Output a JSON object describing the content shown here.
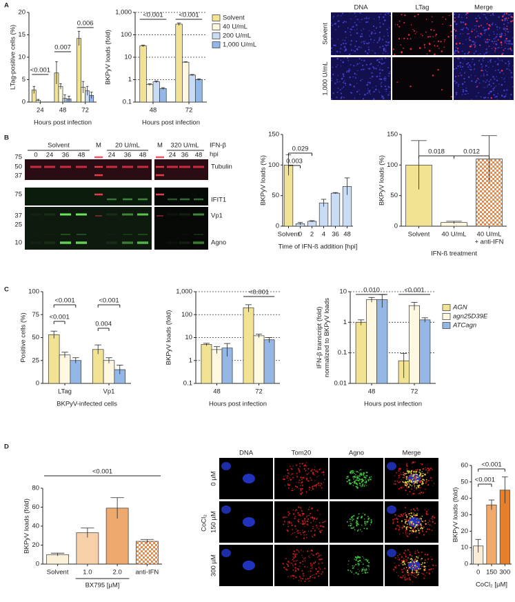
{
  "panel_labels": [
    "A",
    "B",
    "C",
    "D"
  ],
  "micrographs_A": {
    "columns": [
      "DNA",
      "LTag",
      "Merge"
    ],
    "rows": [
      "Solvent",
      "1,000 U/mL"
    ]
  },
  "blot": {
    "groups": [
      "Solvent",
      "M",
      "20 U/mL",
      "M",
      "320 U/mL"
    ],
    "treatment": "IFN-β",
    "time_label": "hpi",
    "lanes": [
      "0",
      "24",
      "36",
      "48",
      "24",
      "36",
      "48",
      "24",
      "36",
      "48"
    ],
    "markers": [
      "75",
      "50",
      "37",
      "75",
      "37",
      "25",
      "10"
    ],
    "proteins": [
      "Tubulin",
      "IFIT1",
      "Vp1",
      "Agno"
    ]
  },
  "micrographs_D": {
    "columns": [
      "DNA",
      "Tom20",
      "Agno",
      "Merge"
    ],
    "rows": [
      "0 µM",
      "150 µM",
      "300 µM"
    ],
    "row_axis": "CoCl₂"
  },
  "chart_data": [
    {
      "type": "bar",
      "ylabel": "LTag-positive cells (%)",
      "xlabel": "Hours post infection",
      "categories": [
        "24",
        "48",
        "72"
      ],
      "series": [
        {
          "color": "#f2e394",
          "values": [
            2.7,
            6.5,
            14.2
          ],
          "errors": [
            0.8,
            2.5,
            1.6
          ]
        },
        {
          "color": "#fdf8df",
          "values": [
            0.4,
            3.5,
            3.3
          ],
          "errors": [
            0.2,
            0.6,
            1.3
          ]
        },
        {
          "color": "#c9dcf3",
          "values": [
            0,
            0.8,
            2.5
          ],
          "errors": [
            0,
            0.8,
            1.0
          ]
        },
        {
          "color": "#94b7e6",
          "values": [
            0,
            0.7,
            1.5
          ],
          "errors": [
            0,
            0.6,
            0.7
          ]
        }
      ],
      "ylim": [
        0,
        20
      ],
      "yticks": [
        0,
        5,
        10,
        15,
        20
      ],
      "log": false,
      "grid": false,
      "annotations": [
        "<0.001",
        "0.007",
        "0.006"
      ]
    },
    {
      "type": "bar",
      "ylabel": "BKPyV loads (fold)",
      "xlabel": "Hours post infection",
      "categories": [
        "48",
        "72"
      ],
      "series": [
        {
          "name": "Solvent",
          "color": "#f2e394",
          "values": [
            32,
            300
          ],
          "errors": [
            3,
            40
          ]
        },
        {
          "name": "40 U/mL",
          "color": "#fdf8df",
          "values": [
            0.6,
            6
          ],
          "errors": [
            0.05,
            0.3
          ]
        },
        {
          "name": "200 U/mL",
          "color": "#c9dcf3",
          "values": [
            0.8,
            1.6
          ],
          "errors": [
            0.08,
            0.1
          ]
        },
        {
          "name": "1,000 U/mL",
          "color": "#94b7e6",
          "values": [
            0.4,
            1.0
          ],
          "errors": [
            0.04,
            0.08
          ]
        }
      ],
      "ylim": [
        0.1,
        1000
      ],
      "yticks": [
        0.1,
        1,
        10,
        100,
        {
          "value": 1000,
          "label": "1,000"
        }
      ],
      "log": true,
      "grid": true,
      "legend": "right",
      "annotations": [
        "<0.001",
        "<0.001"
      ]
    },
    {
      "type": "bar",
      "ylabel": "BKPyV loads (%)",
      "xlabel": "Time of IFN-ß addition [hpi]",
      "categories": [
        "Solvent",
        "0",
        "2",
        "4",
        "36",
        "48"
      ],
      "values": [
        100,
        4,
        8,
        38,
        54,
        65
      ],
      "errors": [
        17,
        2,
        1,
        6,
        1,
        14
      ],
      "colors": [
        "#f2e394",
        "#c9dcf3",
        "#c9dcf3",
        "#c9dcf3",
        "#c9dcf3",
        "#c9dcf3"
      ],
      "ylim": [
        0,
        150
      ],
      "yticks": [
        0,
        50,
        100,
        150
      ],
      "log": false,
      "grid": false,
      "annotations": [
        "0.003",
        "0.029"
      ]
    },
    {
      "type": "bar",
      "ylabel": "BKPyV loads (%)",
      "xlabel": "IFN-ß treatment",
      "categories": [
        "Solvent",
        "40 U/mL",
        [
          "40 U/mL",
          "+ anti-IFN"
        ]
      ],
      "values": [
        100,
        6,
        110
      ],
      "errors": [
        40,
        2,
        38
      ],
      "colors": [
        "#f2e394",
        "#fdf8df",
        "#f0a060"
      ],
      "hatched": [
        false,
        false,
        true
      ],
      "ylim": [
        0,
        150
      ],
      "yticks": [
        0,
        50,
        100,
        150
      ],
      "log": false,
      "grid": false,
      "annotations": [
        "0.018",
        "0.012"
      ]
    },
    {
      "type": "bar",
      "ylabel": "Positive cells (%)",
      "xlabel": "BKPyV-infected cells",
      "categories": [
        "LTag",
        "Vp1"
      ],
      "series": [
        {
          "color": "#f2e394",
          "values": [
            53,
            37
          ],
          "errors": [
            4,
            5
          ]
        },
        {
          "color": "#fdf8df",
          "values": [
            31,
            25
          ],
          "errors": [
            3,
            3
          ]
        },
        {
          "color": "#94b7e6",
          "values": [
            25,
            15
          ],
          "errors": [
            3,
            5
          ]
        }
      ],
      "ylim": [
        0,
        100
      ],
      "yticks": [
        0,
        25,
        50,
        75,
        100
      ],
      "log": false,
      "grid": false,
      "annotations": [
        "<0.001",
        "<0.001",
        "0.004",
        "<0.001"
      ]
    },
    {
      "type": "bar",
      "ylabel": "BKPyV loads (fold)",
      "xlabel": "Hours post infection",
      "categories": [
        "48",
        "72"
      ],
      "series": [
        {
          "color": "#f2e394",
          "values": [
            5,
            200
          ],
          "errors": [
            0.6,
            70
          ]
        },
        {
          "color": "#fdf8df",
          "values": [
            3,
            12
          ],
          "errors": [
            1,
            2
          ]
        },
        {
          "color": "#94b7e6",
          "values": [
            3.5,
            8
          ],
          "errors": [
            2,
            2
          ]
        }
      ],
      "ylim": [
        0.1,
        1000
      ],
      "yticks": [
        0.1,
        1,
        10,
        100,
        {
          "value": 1000,
          "label": "1,000"
        }
      ],
      "log": true,
      "grid": true,
      "annotations": [
        "<0.001"
      ]
    },
    {
      "type": "bar",
      "ylabel": [
        "IFN-β transcript (fold)",
        "normalized to BKPyV loads"
      ],
      "xlabel": "Hours post infection",
      "categories": [
        "48",
        "72"
      ],
      "series": [
        {
          "name": "AGN",
          "color": "#f2e394",
          "values": [
            1,
            0.055
          ],
          "errors": [
            0.2,
            0.04
          ]
        },
        {
          "name": "agn25D39E",
          "color": "#fdf8df",
          "values": [
            5.5,
            3.5
          ],
          "errors": [
            1,
            1
          ]
        },
        {
          "name": "ATCagn",
          "color": "#94b7e6",
          "values": [
            5.5,
            1.2
          ],
          "errors": [
            2.5,
            0.2
          ]
        }
      ],
      "ylim": [
        0.01,
        10
      ],
      "yticks": [
        0.01,
        0.1,
        1,
        10
      ],
      "log": true,
      "grid": true,
      "legend": "right",
      "annotations": [
        "0.010",
        "<0.001"
      ]
    },
    {
      "type": "bar",
      "ylabel": "BKPyV loads (fold)",
      "category_group": "BX795 [µM]",
      "categories": [
        "Solvent",
        "1.0",
        "2.0",
        "anti-IFN"
      ],
      "values": [
        10,
        33,
        59,
        24
      ],
      "errors": [
        1.5,
        5,
        11,
        2
      ],
      "colors": [
        "#fbf1d9",
        "#f7cfa8",
        "#eeaa6e",
        "#f0a060"
      ],
      "hatched": [
        false,
        false,
        false,
        true
      ],
      "ylim": [
        0,
        80
      ],
      "yticks": [
        0,
        20,
        40,
        60,
        80
      ],
      "log": false,
      "grid": false,
      "annotations": [
        "<0.001"
      ]
    },
    {
      "type": "bar",
      "ylabel": "BKPyV loads (fold)",
      "xlabel": "CoCl₂ [µM]",
      "categories": [
        "0",
        "150",
        "300"
      ],
      "values": [
        11,
        36,
        45
      ],
      "errors": [
        4,
        3,
        8
      ],
      "colors": [
        "#fbecd8",
        "#f2aa6b",
        "#e57f2a"
      ],
      "ylim": [
        0,
        60
      ],
      "yticks": [
        0,
        10,
        20,
        30,
        40,
        50,
        60
      ],
      "log": false,
      "grid": false,
      "annotations": [
        "<0.001",
        "<0.001"
      ]
    }
  ]
}
